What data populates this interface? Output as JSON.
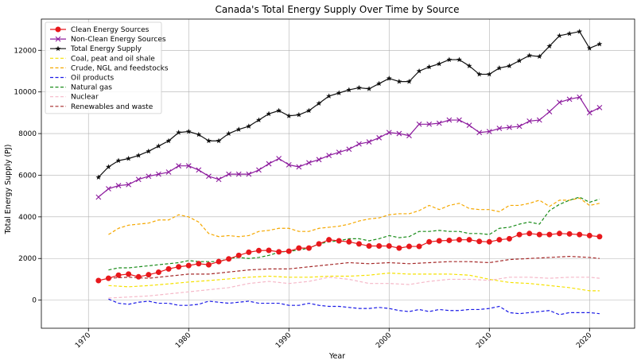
{
  "chart_data": {
    "type": "line",
    "title": "Canada's Total Energy Supply Over Time by Source",
    "xlabel": "Year",
    "ylabel": "Total Energy Supply (PJ)",
    "xlim": [
      1965.3,
      2024.5
    ],
    "ylim": [
      -1350,
      13500
    ],
    "xticks": [
      1970,
      1980,
      1990,
      2000,
      2010,
      2020
    ],
    "yticks": [
      0,
      2000,
      4000,
      6000,
      8000,
      10000,
      12000
    ],
    "grid": true,
    "legend_position": "top-left",
    "series": [
      {
        "name": "Clean Energy Sources",
        "color": "#e8181c",
        "style": "solid",
        "marker": "circle",
        "x": [
          1971,
          1972,
          1973,
          1974,
          1975,
          1976,
          1977,
          1978,
          1979,
          1980,
          1981,
          1982,
          1983,
          1984,
          1985,
          1986,
          1987,
          1988,
          1989,
          1990,
          1991,
          1992,
          1993,
          1994,
          1995,
          1996,
          1997,
          1998,
          1999,
          2000,
          2001,
          2002,
          2003,
          2004,
          2005,
          2006,
          2007,
          2008,
          2009,
          2010,
          2011,
          2012,
          2013,
          2014,
          2015,
          2016,
          2017,
          2018,
          2019,
          2020,
          2021
        ],
        "values": [
          940,
          1050,
          1200,
          1250,
          1120,
          1220,
          1340,
          1500,
          1600,
          1660,
          1750,
          1700,
          1850,
          1980,
          2150,
          2300,
          2380,
          2390,
          2320,
          2350,
          2500,
          2500,
          2700,
          2900,
          2850,
          2800,
          2700,
          2600,
          2600,
          2600,
          2500,
          2580,
          2580,
          2800,
          2850,
          2870,
          2900,
          2900,
          2820,
          2800,
          2900,
          2950,
          3150,
          3200,
          3150,
          3150,
          3200,
          3180,
          3150,
          3100,
          3050
        ]
      },
      {
        "name": "Non-Clean Energy Sources",
        "color": "#8d1b9e",
        "style": "solid",
        "marker": "x",
        "x": [
          1971,
          1972,
          1973,
          1974,
          1975,
          1976,
          1977,
          1978,
          1979,
          1980,
          1981,
          1982,
          1983,
          1984,
          1985,
          1986,
          1987,
          1988,
          1989,
          1990,
          1991,
          1992,
          1993,
          1994,
          1995,
          1996,
          1997,
          1998,
          1999,
          2000,
          2001,
          2002,
          2003,
          2004,
          2005,
          2006,
          2007,
          2008,
          2009,
          2010,
          2011,
          2012,
          2013,
          2014,
          2015,
          2016,
          2017,
          2018,
          2019,
          2020,
          2021
        ],
        "values": [
          4950,
          5350,
          5500,
          5550,
          5800,
          5950,
          6050,
          6150,
          6450,
          6450,
          6250,
          5950,
          5800,
          6050,
          6050,
          6050,
          6250,
          6550,
          6800,
          6500,
          6400,
          6600,
          6750,
          6950,
          7100,
          7250,
          7500,
          7600,
          7800,
          8050,
          8000,
          7900,
          8450,
          8450,
          8500,
          8650,
          8650,
          8400,
          8050,
          8100,
          8250,
          8300,
          8350,
          8600,
          8650,
          9050,
          9500,
          9650,
          9750,
          9000,
          9250
        ]
      },
      {
        "name": "Total Energy Supply",
        "color": "#111111",
        "style": "solid",
        "marker": "star",
        "x": [
          1971,
          1972,
          1973,
          1974,
          1975,
          1976,
          1977,
          1978,
          1979,
          1980,
          1981,
          1982,
          1983,
          1984,
          1985,
          1986,
          1987,
          1988,
          1989,
          1990,
          1991,
          1992,
          1993,
          1994,
          1995,
          1996,
          1997,
          1998,
          1999,
          2000,
          2001,
          2002,
          2003,
          2004,
          2005,
          2006,
          2007,
          2008,
          2009,
          2010,
          2011,
          2012,
          2013,
          2014,
          2015,
          2016,
          2017,
          2018,
          2019,
          2020,
          2021
        ],
        "values": [
          5900,
          6400,
          6700,
          6800,
          6950,
          7150,
          7400,
          7650,
          8050,
          8100,
          7950,
          7650,
          7650,
          8000,
          8200,
          8350,
          8650,
          8950,
          9100,
          8850,
          8900,
          9100,
          9450,
          9800,
          9950,
          10100,
          10200,
          10150,
          10400,
          10650,
          10500,
          10500,
          11000,
          11200,
          11350,
          11550,
          11550,
          11250,
          10850,
          10850,
          11150,
          11250,
          11500,
          11750,
          11700,
          12200,
          12700,
          12800,
          12900,
          12100,
          12300
        ]
      },
      {
        "name": "Coal, peat and oil shale",
        "color": "#f5e100",
        "style": "dashed",
        "marker": "none",
        "x": [
          1972,
          1974,
          1976,
          1978,
          1980,
          1982,
          1984,
          1986,
          1988,
          1990,
          1992,
          1994,
          1996,
          1998,
          2000,
          2002,
          2004,
          2006,
          2008,
          2010,
          2012,
          2014,
          2016,
          2018,
          2020,
          2021
        ],
        "values": [
          700,
          640,
          700,
          780,
          870,
          940,
          1020,
          1100,
          1150,
          1100,
          1100,
          1150,
          1150,
          1200,
          1300,
          1250,
          1250,
          1250,
          1200,
          1000,
          850,
          800,
          700,
          600,
          450,
          450
        ]
      },
      {
        "name": "Crude, NGL and feedstocks",
        "color": "#f5a800",
        "style": "dashed",
        "marker": "none",
        "x": [
          1972,
          1973,
          1974,
          1975,
          1976,
          1977,
          1978,
          1979,
          1980,
          1981,
          1982,
          1983,
          1984,
          1985,
          1986,
          1987,
          1988,
          1989,
          1990,
          1991,
          1992,
          1993,
          1994,
          1995,
          1996,
          1997,
          1998,
          1999,
          2000,
          2001,
          2002,
          2003,
          2004,
          2005,
          2006,
          2007,
          2008,
          2009,
          2010,
          2011,
          2012,
          2013,
          2014,
          2015,
          2016,
          2017,
          2018,
          2019,
          2020,
          2021
        ],
        "values": [
          3150,
          3450,
          3600,
          3650,
          3700,
          3850,
          3850,
          4100,
          4000,
          3750,
          3200,
          3050,
          3100,
          3050,
          3100,
          3300,
          3350,
          3450,
          3450,
          3300,
          3300,
          3450,
          3500,
          3550,
          3650,
          3800,
          3900,
          3950,
          4100,
          4150,
          4150,
          4300,
          4550,
          4350,
          4550,
          4650,
          4400,
          4350,
          4350,
          4250,
          4550,
          4550,
          4650,
          4800,
          4500,
          4800,
          4800,
          4900,
          4550,
          4650
        ]
      },
      {
        "name": "Oil products",
        "color": "#1a1ae6",
        "style": "dashed",
        "marker": "none",
        "x": [
          1972,
          1973,
          1974,
          1975,
          1976,
          1977,
          1978,
          1979,
          1980,
          1981,
          1982,
          1983,
          1984,
          1985,
          1986,
          1987,
          1988,
          1989,
          1990,
          1991,
          1992,
          1993,
          1994,
          1995,
          1996,
          1997,
          1998,
          1999,
          2000,
          2001,
          2002,
          2003,
          2004,
          2005,
          2006,
          2007,
          2008,
          2009,
          2010,
          2011,
          2012,
          2013,
          2014,
          2015,
          2016,
          2017,
          2018,
          2019,
          2020,
          2021
        ],
        "values": [
          50,
          -150,
          -200,
          -100,
          -50,
          -150,
          -150,
          -250,
          -250,
          -200,
          -50,
          -100,
          -150,
          -100,
          -50,
          -150,
          -150,
          -150,
          -250,
          -250,
          -150,
          -250,
          -300,
          -300,
          -350,
          -400,
          -400,
          -350,
          -400,
          -500,
          -550,
          -450,
          -550,
          -450,
          -500,
          -500,
          -450,
          -450,
          -400,
          -300,
          -600,
          -650,
          -600,
          -550,
          -500,
          -700,
          -600,
          -600,
          -600,
          -650
        ]
      },
      {
        "name": "Natural gas",
        "color": "#1a8c1a",
        "style": "dashed",
        "marker": "none",
        "x": [
          1972,
          1973,
          1974,
          1975,
          1976,
          1977,
          1978,
          1979,
          1980,
          1981,
          1982,
          1983,
          1984,
          1985,
          1986,
          1987,
          1988,
          1989,
          1990,
          1991,
          1992,
          1993,
          1994,
          1995,
          1996,
          1997,
          1998,
          1999,
          2000,
          2001,
          2002,
          2003,
          2004,
          2005,
          2006,
          2007,
          2008,
          2009,
          2010,
          2011,
          2012,
          2013,
          2014,
          2015,
          2016,
          2017,
          2018,
          2019,
          2020,
          2021
        ],
        "values": [
          1450,
          1550,
          1550,
          1600,
          1650,
          1700,
          1750,
          1800,
          1900,
          1850,
          1850,
          1850,
          2000,
          2050,
          2000,
          2050,
          2150,
          2300,
          2350,
          2400,
          2500,
          2700,
          2800,
          2850,
          2950,
          2950,
          2850,
          2950,
          3100,
          3000,
          3050,
          3300,
          3300,
          3350,
          3300,
          3300,
          3200,
          3200,
          3150,
          3450,
          3500,
          3650,
          3750,
          3650,
          4300,
          4600,
          4800,
          4950,
          4700,
          4850
        ]
      },
      {
        "name": "Nuclear",
        "color": "#f5b8c8",
        "style": "dashed",
        "marker": "none",
        "x": [
          1972,
          1974,
          1976,
          1978,
          1980,
          1982,
          1984,
          1986,
          1988,
          1990,
          1992,
          1994,
          1996,
          1998,
          2000,
          2002,
          2004,
          2006,
          2008,
          2010,
          2012,
          2014,
          2016,
          2018,
          2020,
          2021
        ],
        "values": [
          100,
          150,
          200,
          300,
          400,
          500,
          600,
          800,
          900,
          800,
          900,
          1100,
          1000,
          800,
          800,
          750,
          900,
          1000,
          1000,
          950,
          1100,
          1100,
          1050,
          1100,
          1100,
          1050
        ]
      },
      {
        "name": "Renewables and waste",
        "color": "#a52a2a",
        "style": "dashed",
        "marker": "none",
        "x": [
          1972,
          1974,
          1976,
          1978,
          1980,
          1982,
          1984,
          1986,
          1988,
          1990,
          1992,
          1994,
          1996,
          1998,
          2000,
          2002,
          2004,
          2006,
          2008,
          2010,
          2012,
          2014,
          2016,
          2018,
          2020,
          2021
        ],
        "values": [
          1050,
          1100,
          1050,
          1150,
          1250,
          1250,
          1350,
          1450,
          1500,
          1500,
          1600,
          1700,
          1800,
          1750,
          1800,
          1750,
          1800,
          1850,
          1850,
          1800,
          1950,
          2000,
          2050,
          2100,
          2050,
          2000
        ]
      }
    ]
  }
}
